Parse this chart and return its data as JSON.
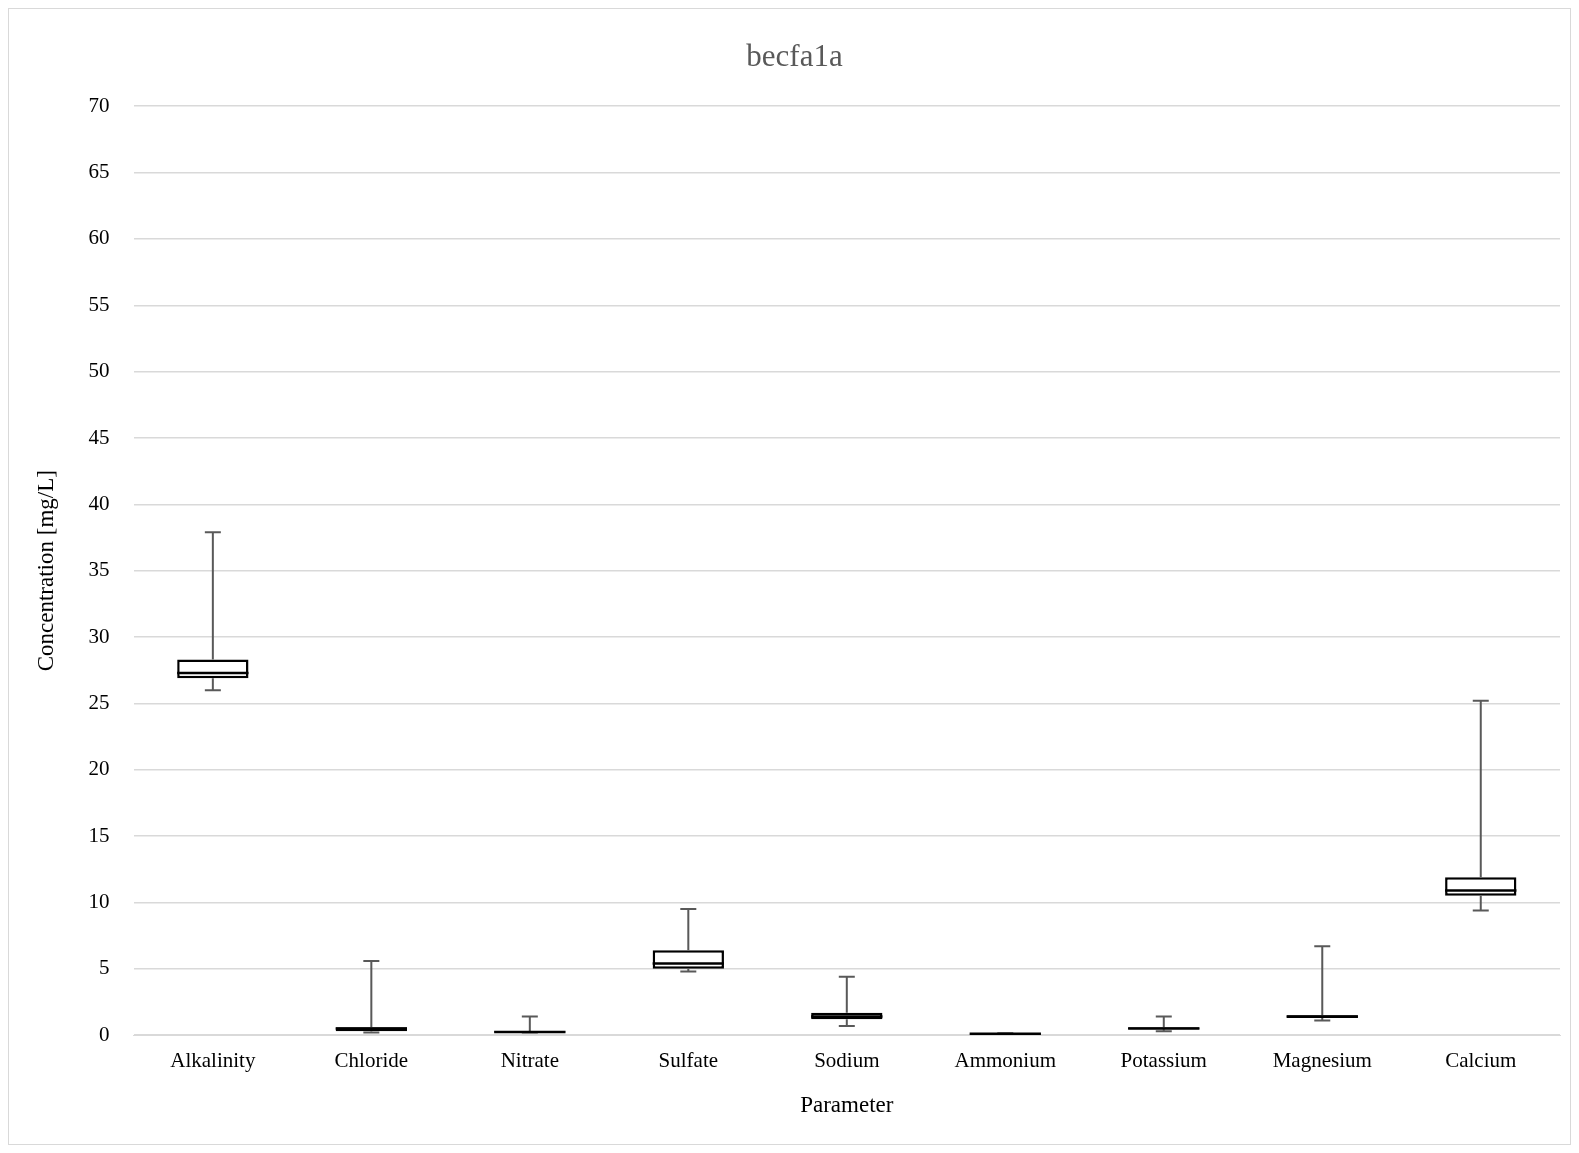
{
  "chart_data": {
    "type": "box",
    "title": "becfa1a",
    "xlabel": "Parameter",
    "ylabel": "Concentration [mg/L]",
    "categories": [
      "Alkalinity",
      "Chloride",
      "Nitrate",
      "Sulfate",
      "Sodium",
      "Ammonium",
      "Potassium",
      "Magnesium",
      "Calcium"
    ],
    "boxes": [
      {
        "low": 26.0,
        "q1": 26.9,
        "median": 27.3,
        "q3": 28.3,
        "high": 37.9
      },
      {
        "low": 0.2,
        "q1": 0.3,
        "median": 0.5,
        "q3": 0.6,
        "high": 5.6
      },
      {
        "low": 0.2,
        "q1": 0.2,
        "median": 0.25,
        "q3": 0.3,
        "high": 1.4
      },
      {
        "low": 4.8,
        "q1": 5.0,
        "median": 5.4,
        "q3": 6.4,
        "high": 9.5
      },
      {
        "low": 0.7,
        "q1": 1.2,
        "median": 1.4,
        "q3": 1.7,
        "high": 4.4
      },
      {
        "low": 0.1,
        "q1": 0.1,
        "median": 0.1,
        "q3": 0.1,
        "high": 0.15
      },
      {
        "low": 0.3,
        "q1": 0.45,
        "median": 0.5,
        "q3": 0.6,
        "high": 1.4
      },
      {
        "low": 1.1,
        "q1": 1.3,
        "median": 1.4,
        "q3": 1.5,
        "high": 6.7
      },
      {
        "low": 9.4,
        "q1": 10.5,
        "median": 10.9,
        "q3": 11.9,
        "high": 25.2
      }
    ],
    "color": "#000000",
    "ylim": [
      0,
      70
    ],
    "yticks": [
      0,
      5,
      10,
      15,
      20,
      25,
      30,
      35,
      40,
      45,
      50,
      55,
      60,
      65,
      70
    ],
    "grid": "y",
    "legend": false
  }
}
